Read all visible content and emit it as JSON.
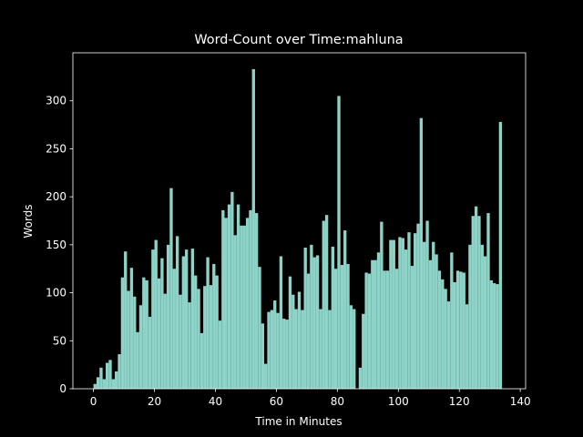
{
  "chart_data": {
    "type": "bar",
    "title": "Word-Count over Time:mahluna",
    "xlabel": "Time in Minutes",
    "ylabel": "Words",
    "x": [
      0,
      1,
      2,
      3,
      4,
      5,
      6,
      7,
      8,
      9,
      10,
      11,
      12,
      13,
      14,
      15,
      16,
      17,
      18,
      19,
      20,
      21,
      22,
      23,
      24,
      25,
      26,
      27,
      28,
      29,
      30,
      31,
      32,
      33,
      34,
      35,
      36,
      37,
      38,
      39,
      40,
      41,
      42,
      43,
      44,
      45,
      46,
      47,
      48,
      49,
      50,
      51,
      52,
      53,
      54,
      55,
      56,
      57,
      58,
      59,
      60,
      61,
      62,
      63,
      64,
      65,
      66,
      67,
      68,
      69,
      70,
      71,
      72,
      73,
      74,
      75,
      76,
      77,
      78,
      79,
      80,
      81,
      82,
      83,
      84,
      85,
      86,
      87,
      88,
      89,
      90,
      91,
      92,
      93,
      94,
      95,
      96,
      97,
      98,
      99,
      100,
      101,
      102,
      103,
      104,
      105,
      106,
      107,
      108,
      109,
      110,
      111,
      112,
      113,
      114,
      115,
      116,
      117,
      118,
      119,
      120,
      121,
      122,
      123,
      124,
      125,
      126,
      127,
      128,
      129,
      130,
      131,
      132,
      133
    ],
    "values": [
      5,
      12,
      22,
      10,
      27,
      30,
      10,
      18,
      36,
      116,
      143,
      102,
      126,
      96,
      59,
      87,
      116,
      113,
      75,
      145,
      155,
      115,
      136,
      99,
      150,
      209,
      125,
      159,
      98,
      138,
      145,
      90,
      146,
      118,
      104,
      58,
      107,
      137,
      108,
      130,
      118,
      71,
      186,
      178,
      192,
      205,
      160,
      192,
      170,
      170,
      178,
      186,
      333,
      183,
      127,
      68,
      26,
      80,
      82,
      92,
      79,
      138,
      73,
      72,
      117,
      98,
      83,
      101,
      82,
      147,
      120,
      150,
      137,
      139,
      83,
      175,
      181,
      82,
      148,
      125,
      305,
      129,
      165,
      130,
      87,
      83,
      0,
      22,
      78,
      121,
      120,
      134,
      134,
      142,
      174,
      123,
      123,
      155,
      155,
      125,
      158,
      157,
      145,
      163,
      128,
      162,
      172,
      282,
      153,
      175,
      134,
      153,
      140,
      123,
      114,
      104,
      91,
      142,
      111,
      123,
      122,
      121,
      88,
      150,
      180,
      190,
      180,
      150,
      138,
      183,
      113,
      110,
      109,
      278
    ],
    "color": "#8dd3c7",
    "xlim": [
      -6.75,
      141.75
    ],
    "xticks": [
      0,
      20,
      40,
      60,
      80,
      100,
      120,
      140
    ],
    "ylim": [
      0,
      350
    ],
    "yticks": [
      0,
      50,
      100,
      150,
      200,
      250,
      300
    ]
  }
}
